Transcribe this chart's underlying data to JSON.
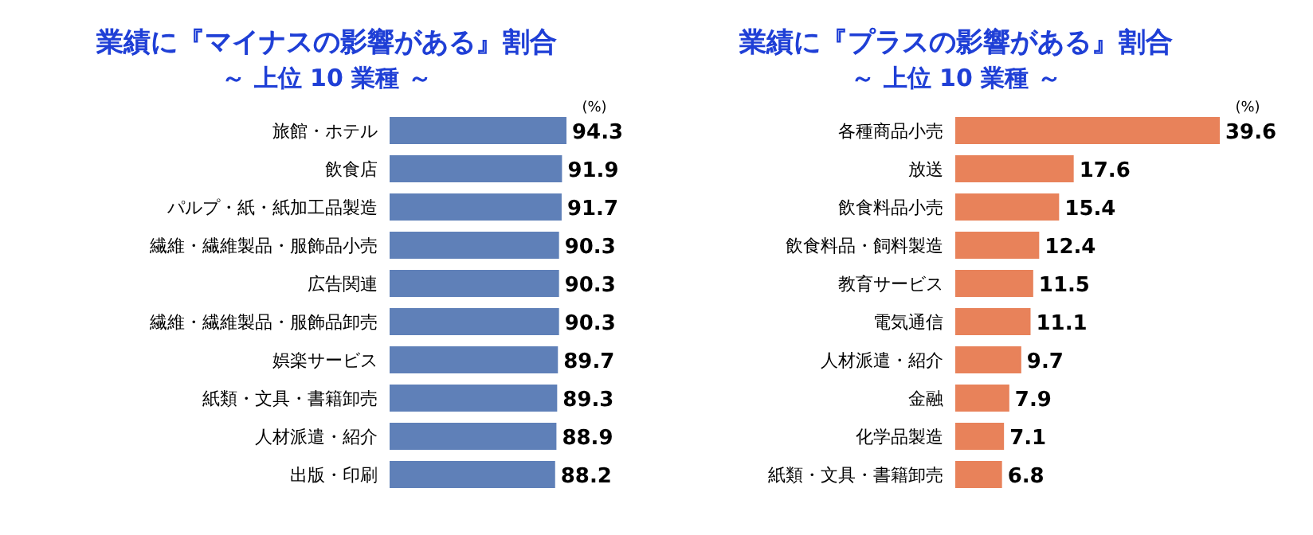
{
  "chart_data": [
    {
      "type": "bar",
      "orientation": "horizontal",
      "title": "業績に『マイナスの影響がある』割合",
      "subtitle": "～ 上位 10 業種 ～",
      "categories": [
        "旅館・ホテル",
        "飲食店",
        "パルプ・紙・紙加工品製造",
        "繊維・繊維製品・服飾品小売",
        "広告関連",
        "繊維・繊維製品・服飾品卸売",
        "娯楽サービス",
        "紙類・文具・書籍卸売",
        "人材派遣・紹介",
        "出版・印刷"
      ],
      "values": [
        94.3,
        91.9,
        91.7,
        90.3,
        90.3,
        90.3,
        89.7,
        89.3,
        88.9,
        88.2
      ],
      "color": "#5f80b8",
      "data_labels": true,
      "annotations": [
        "(%)"
      ]
    },
    {
      "type": "bar",
      "orientation": "horizontal",
      "title": "業績に『プラスの影響がある』割合",
      "subtitle": "～ 上位 10 業種 ～",
      "categories": [
        "各種商品小売",
        "放送",
        "飲食料品小売",
        "飲食料品・飼料製造",
        "教育サービス",
        "電気通信",
        "人材派遣・紹介",
        "金融",
        "化学品製造",
        "紙類・文具・書籍卸売"
      ],
      "values": [
        39.6,
        17.6,
        15.4,
        12.4,
        11.5,
        11.1,
        9.7,
        7.9,
        7.1,
        6.8
      ],
      "color": "#e8825a",
      "data_labels": true,
      "annotations": [
        "(%)"
      ]
    }
  ]
}
